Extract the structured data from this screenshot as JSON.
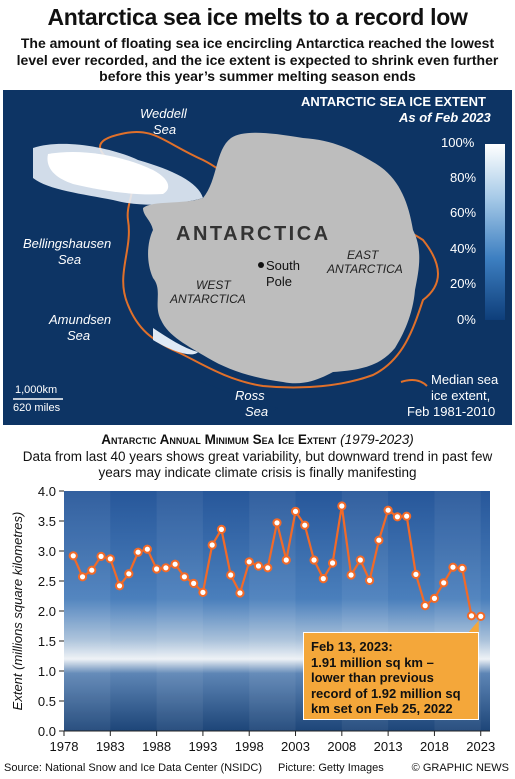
{
  "header": {
    "title": "Antarctica sea ice melts to a record low",
    "subtitle": "The amount of floating sea ice encircling Antarctica reached the lowest level ever recorded, and the ice extent is expected to shrink even further before this year’s summer melting season ends"
  },
  "map": {
    "legend_title": "ANTARCTIC SEA ICE EXTENT",
    "legend_date": "As of Feb 2023",
    "legend_ticks": [
      "100%",
      "80%",
      "60%",
      "40%",
      "20%",
      "0%"
    ],
    "continent_label": "ANTARCTICA",
    "labels": {
      "weddell_1": "Weddell",
      "weddell_2": "Sea",
      "bellingshausen_1": "Bellingshausen",
      "bellingshausen_2": "Sea",
      "amundsen_1": "Amundsen",
      "amundsen_2": "Sea",
      "ross_1": "Ross",
      "ross_2": "Sea",
      "west_1": "WEST",
      "west_2": "ANTARCTICA",
      "east_1": "EAST",
      "east_2": "ANTARCTICA",
      "pole_1": "South",
      "pole_2": "Pole"
    },
    "median_label": [
      "Median sea",
      "ice extent,",
      "Feb 1981-2010"
    ],
    "scale_km": "1,000km",
    "scale_miles": "620 miles",
    "colors": {
      "ocean": "#0d3464",
      "land": "#bdbdbd",
      "median_line": "#e0702a"
    }
  },
  "chart_section": {
    "title": "Antarctic Annual Minimum Sea Ice Extent",
    "years_note": "(1979-2023)",
    "subtitle": "Data from last 40 years shows great variability, but downward trend in past few years may indicate climate crisis is finally manifesting"
  },
  "chart_data": {
    "type": "line",
    "ylabel": "Extent (millions square kilometres)",
    "ylim": [
      0,
      4.0
    ],
    "yticks": [
      "0.0",
      "0.5",
      "1.0",
      "1.5",
      "2.0",
      "2.5",
      "3.0",
      "3.5",
      "4.0"
    ],
    "xticks": [
      "1978",
      "1983",
      "1988",
      "1993",
      "1998",
      "2003",
      "2008",
      "2013",
      "2018",
      "2023"
    ],
    "xlim": [
      1978,
      2024
    ],
    "grid": false,
    "series": [
      {
        "color": "#f26a28",
        "x": [
          1979,
          1980,
          1981,
          1982,
          1983,
          1984,
          1985,
          1986,
          1987,
          1988,
          1989,
          1990,
          1991,
          1992,
          1993,
          1994,
          1995,
          1996,
          1997,
          1998,
          1999,
          2000,
          2001,
          2002,
          2003,
          2004,
          2005,
          2006,
          2007,
          2008,
          2009,
          2010,
          2011,
          2012,
          2013,
          2014,
          2015,
          2016,
          2017,
          2018,
          2019,
          2020,
          2021,
          2022,
          2023
        ],
        "values": [
          2.92,
          2.57,
          2.68,
          2.91,
          2.87,
          2.42,
          2.62,
          2.98,
          3.03,
          2.7,
          2.72,
          2.78,
          2.57,
          2.46,
          2.31,
          3.1,
          3.36,
          2.6,
          2.3,
          2.82,
          2.75,
          2.72,
          3.47,
          2.85,
          3.66,
          3.43,
          2.85,
          2.54,
          2.8,
          3.75,
          2.6,
          2.85,
          2.51,
          3.18,
          3.68,
          3.57,
          3.58,
          2.61,
          2.09,
          2.21,
          2.47,
          2.73,
          2.71,
          1.92,
          1.91
        ]
      }
    ],
    "annotation": {
      "date": "Feb 13, 2023:",
      "text": "1.91 million sq km – lower than previous record of 1.92 million sq km set on Feb 25, 2022"
    }
  },
  "footer": {
    "source": "Source: National Snow and Ice Data Center (NSIDC)",
    "picture": "Picture: Getty Images",
    "copyright": "© GRAPHIC NEWS"
  }
}
